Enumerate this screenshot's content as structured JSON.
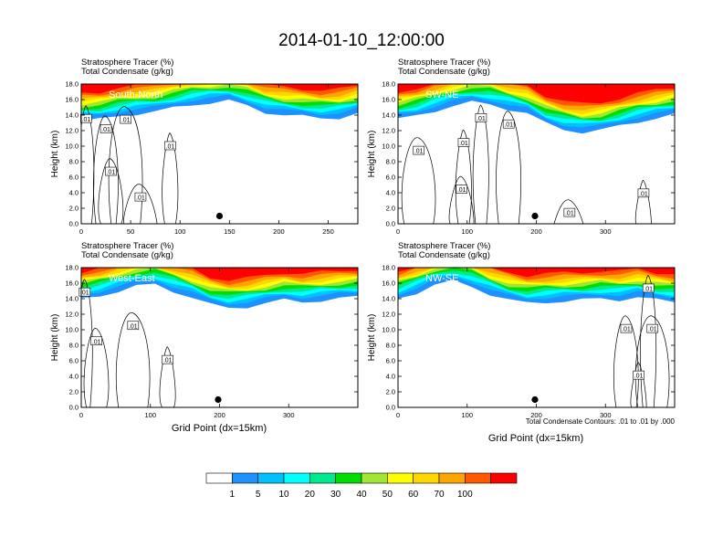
{
  "title": "2014-01-10_12:00:00",
  "panel_header": {
    "line1": "Stratosphere Tracer   (%)",
    "line2": "Total Condensate   (g/kg)"
  },
  "ylabel": "Height (km)",
  "xlabel": "Grid Point (dx=15km)",
  "contour_note": "Total Condensate Contours: .01 to .01 by .000",
  "contour_label": ".01",
  "colorbar": {
    "levels": [
      "1",
      "5",
      "10",
      "20",
      "30",
      "40",
      "50",
      "60",
      "70",
      "100"
    ],
    "colors": [
      "#ffffff",
      "#1e90ff",
      "#00bfff",
      "#00ffff",
      "#00e890",
      "#00dd00",
      "#a0e632",
      "#ffff00",
      "#ffd700",
      "#ffa500",
      "#ff5a00",
      "#ff0000"
    ]
  },
  "chart_data": [
    {
      "type": "heatmap",
      "region": "South-North",
      "ylim": [
        0,
        18
      ],
      "yticks": [
        "0.0",
        "2.0",
        "4.0",
        "6.0",
        "8.0",
        "10.0",
        "12.0",
        "14.0",
        "16.0",
        "18.0"
      ],
      "xlim": [
        0,
        280
      ],
      "xticks": [
        0,
        50,
        100,
        150,
        200,
        250
      ],
      "marker": {
        "x": 140,
        "y": 1.0
      },
      "tracer_base_km": [
        13.8,
        14.0,
        14.5,
        14.8,
        15.0,
        15.5,
        16.0,
        16.2,
        16.4,
        15.8,
        15.0,
        14.6,
        14.4,
        14.2,
        14.3,
        14.8
      ],
      "contour_labels": [
        {
          "x": 5,
          "y": 13.5
        },
        {
          "x": 25,
          "y": 12.2
        },
        {
          "x": 45,
          "y": 13.4
        },
        {
          "x": 90,
          "y": 10.0
        },
        {
          "x": 30,
          "y": 6.7
        },
        {
          "x": 60,
          "y": 3.4
        }
      ]
    },
    {
      "type": "heatmap",
      "region": "SW-NE",
      "ylim": [
        0,
        18
      ],
      "yticks": [
        "0.0",
        "2.0",
        "4.0",
        "6.0",
        "8.0",
        "10.0",
        "12.0",
        "14.0",
        "16.0",
        "18.0"
      ],
      "xlim": [
        0,
        400
      ],
      "xticks": [
        0,
        100,
        200,
        300
      ],
      "marker": {
        "x": 198,
        "y": 1.0
      },
      "tracer_base_km": [
        14.0,
        14.5,
        15.2,
        15.8,
        16.2,
        16.0,
        15.4,
        14.8,
        13.5,
        12.8,
        12.4,
        12.6,
        13.2,
        13.8,
        14.2,
        14.6
      ],
      "contour_labels": [
        {
          "x": 120,
          "y": 13.6
        },
        {
          "x": 160,
          "y": 12.8
        },
        {
          "x": 30,
          "y": 9.4
        },
        {
          "x": 95,
          "y": 10.4
        },
        {
          "x": 92,
          "y": 4.4
        },
        {
          "x": 248,
          "y": 1.4
        },
        {
          "x": 355,
          "y": 3.9
        }
      ]
    },
    {
      "type": "heatmap",
      "region": "West-East",
      "ylim": [
        0,
        18
      ],
      "yticks": [
        "0.0",
        "2.0",
        "4.0",
        "6.0",
        "8.0",
        "10.0",
        "12.0",
        "14.0",
        "16.0",
        "18.0"
      ],
      "xlim": [
        0,
        400
      ],
      "xticks": [
        0,
        100,
        200,
        300
      ],
      "marker": {
        "x": 198,
        "y": 1.0
      },
      "tracer_base_km": [
        14.5,
        15.0,
        15.6,
        16.2,
        16.4,
        15.6,
        14.8,
        13.8,
        13.4,
        13.6,
        14.0,
        14.4,
        14.2,
        14.4,
        14.6,
        14.8
      ],
      "contour_labels": [
        {
          "x": 5,
          "y": 14.8
        },
        {
          "x": 22,
          "y": 8.5
        },
        {
          "x": 75,
          "y": 10.5
        },
        {
          "x": 125,
          "y": 6.1
        }
      ]
    },
    {
      "type": "heatmap",
      "region": "NW-SE",
      "ylim": [
        0,
        18
      ],
      "yticks": [
        "0.0",
        "2.0",
        "4.0",
        "6.0",
        "8.0",
        "10.0",
        "12.0",
        "14.0",
        "16.0",
        "18.0"
      ],
      "xlim": [
        0,
        400
      ],
      "xticks": [
        0,
        100,
        200,
        300
      ],
      "marker": {
        "x": 198,
        "y": 1.0
      },
      "tracer_base_km": [
        14.6,
        15.4,
        16.4,
        16.8,
        16.2,
        15.2,
        14.4,
        14.0,
        14.2,
        14.3,
        14.4,
        14.6,
        14.5,
        14.8,
        14.4,
        14.2
      ],
      "contour_labels": [
        {
          "x": 362,
          "y": 15.3
        },
        {
          "x": 330,
          "y": 10.1
        },
        {
          "x": 368,
          "y": 10.1
        },
        {
          "x": 348,
          "y": 4.1
        }
      ]
    }
  ]
}
